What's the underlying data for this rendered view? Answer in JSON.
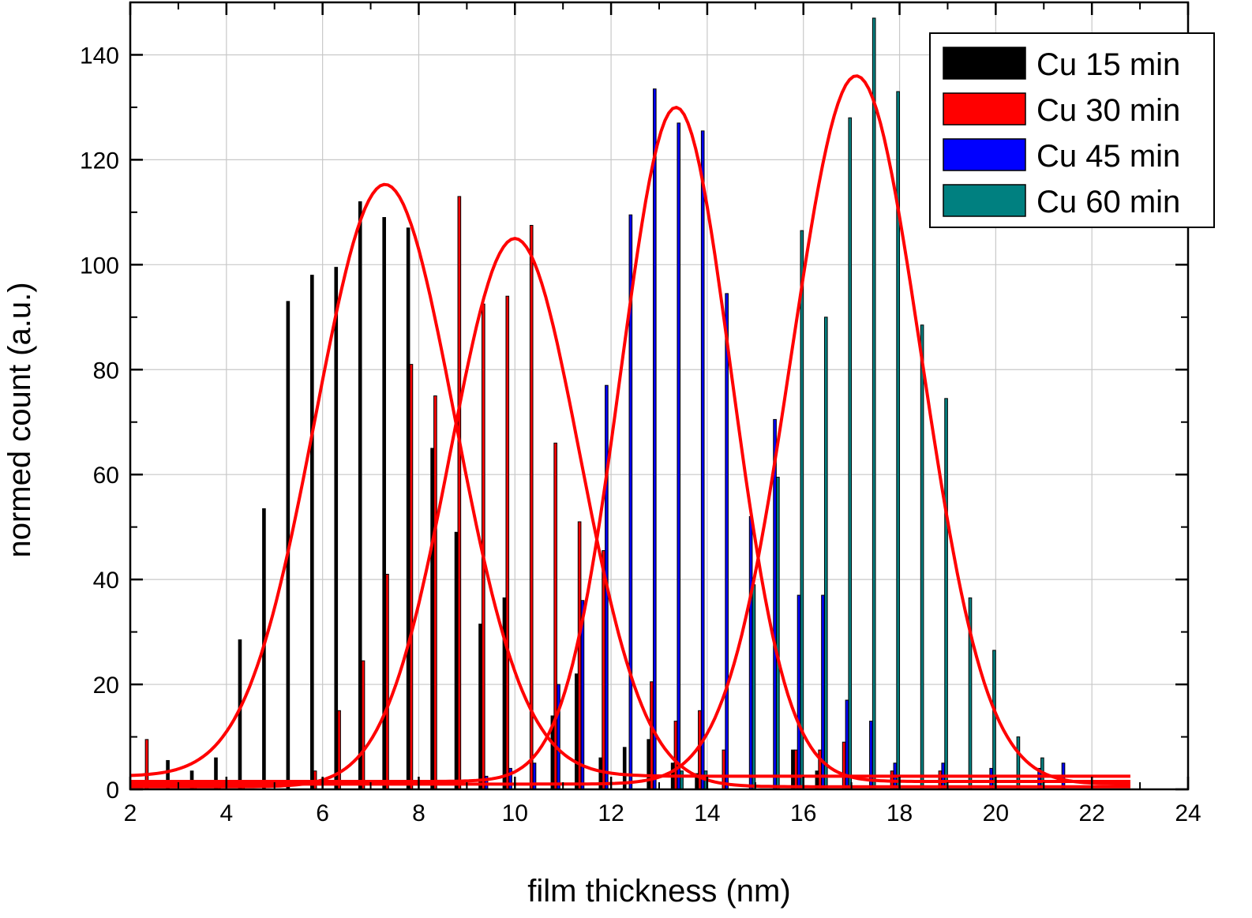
{
  "chart_data": {
    "type": "bar",
    "title": "",
    "xlabel": "film thickness (nm)",
    "ylabel": "normed count (a.u.)",
    "xlim": [
      2,
      24
    ],
    "ylim": [
      0,
      150
    ],
    "x_ticks": [
      2,
      4,
      6,
      8,
      10,
      12,
      14,
      16,
      18,
      20,
      22,
      24
    ],
    "y_ticks": [
      0,
      20,
      40,
      60,
      80,
      100,
      120,
      140
    ],
    "grid": true,
    "legend_position": "top-right",
    "bin_width": 0.5,
    "bar_offsets": [
      0.25,
      0.25,
      0.25,
      0.25
    ],
    "series": [
      {
        "name": "Cu 15 min",
        "color": "#000000",
        "x": [
          2.5,
          3.0,
          3.5,
          4.0,
          4.5,
          5.0,
          5.5,
          6.0,
          6.5,
          7.0,
          7.5,
          8.0,
          8.5,
          9.0,
          9.5,
          10.0,
          10.5,
          11.0,
          11.5,
          12.0,
          12.5,
          13.0,
          13.5,
          14.0,
          14.5,
          15.0,
          15.5,
          16.0,
          16.5,
          17.0,
          17.5,
          18.0
        ],
        "values": [
          0,
          5.5,
          3.5,
          6,
          28.5,
          53.5,
          93,
          98,
          99.5,
          112,
          109,
          107,
          65,
          49,
          31.5,
          36.5,
          0,
          14,
          22,
          6,
          8,
          9.5,
          5,
          3,
          0,
          0,
          0,
          7.5,
          3.5,
          0,
          0,
          0
        ]
      },
      {
        "name": "Cu 30 min",
        "color": "#ff0000",
        "x": [
          2.5,
          3.0,
          3.5,
          4.0,
          4.5,
          5.0,
          5.5,
          6.0,
          6.5,
          7.0,
          7.5,
          8.0,
          8.5,
          9.0,
          9.5,
          10.0,
          10.5,
          11.0,
          11.5,
          12.0,
          12.5,
          13.0,
          13.5,
          14.0,
          14.5,
          15.0,
          15.5,
          16.0,
          16.5,
          17.0,
          17.5,
          18.0,
          18.5,
          19.0
        ],
        "values": [
          9.5,
          0,
          1.5,
          1.5,
          1.5,
          0,
          0,
          3.5,
          15,
          24.5,
          41,
          81,
          75,
          113,
          92.5,
          94,
          107.5,
          66,
          51,
          45.5,
          0,
          20.5,
          13,
          15,
          7.5,
          0,
          0,
          7.5,
          7.5,
          9,
          0,
          3.5,
          0,
          3.5
        ]
      },
      {
        "name": "Cu 45 min",
        "color": "#0000ff",
        "x": [
          9.5,
          10.0,
          10.5,
          11.0,
          11.5,
          12.0,
          12.5,
          13.0,
          13.5,
          14.0,
          14.5,
          15.0,
          15.5,
          16.0,
          16.5,
          17.0,
          17.5,
          18.0,
          18.5,
          19.0,
          19.5,
          20.0,
          20.5,
          21.0,
          21.5
        ],
        "values": [
          2.5,
          4,
          5,
          20,
          36,
          77,
          109.5,
          133.5,
          127,
          125.5,
          94.5,
          52,
          70.5,
          37,
          37,
          17,
          13,
          5,
          0,
          5,
          0,
          4,
          0,
          4,
          5
        ]
      },
      {
        "name": "Cu 60 min",
        "color": "#008080",
        "x": [
          13.5,
          14.0,
          14.5,
          15.0,
          15.5,
          16.0,
          16.5,
          17.0,
          17.5,
          18.0,
          18.5,
          19.0,
          19.5,
          20.0,
          20.5,
          21.0
        ],
        "values": [
          3.5,
          3.5,
          0,
          39,
          59.5,
          106.5,
          90,
          128,
          147,
          133,
          88.5,
          74.5,
          36.5,
          26.5,
          10,
          6
        ]
      }
    ],
    "fit_curves": [
      {
        "color": "#ff0000",
        "x": [
          2,
          22.8
        ],
        "peak": 115.3,
        "center": 7.3,
        "sigma": 1.45,
        "baseline": 2.5
      },
      {
        "color": "#ff0000",
        "x": [
          2,
          22.8
        ],
        "peak": 105,
        "center": 10.0,
        "sigma": 1.35,
        "baseline": 0.5
      },
      {
        "color": "#ff0000",
        "x": [
          2,
          22.8
        ],
        "peak": 130,
        "center": 13.35,
        "sigma": 1.15,
        "baseline": 1.5
      },
      {
        "color": "#ff0000",
        "x": [
          2,
          22.8
        ],
        "peak": 136,
        "center": 17.1,
        "sigma": 1.35,
        "baseline": 1.0
      }
    ]
  }
}
